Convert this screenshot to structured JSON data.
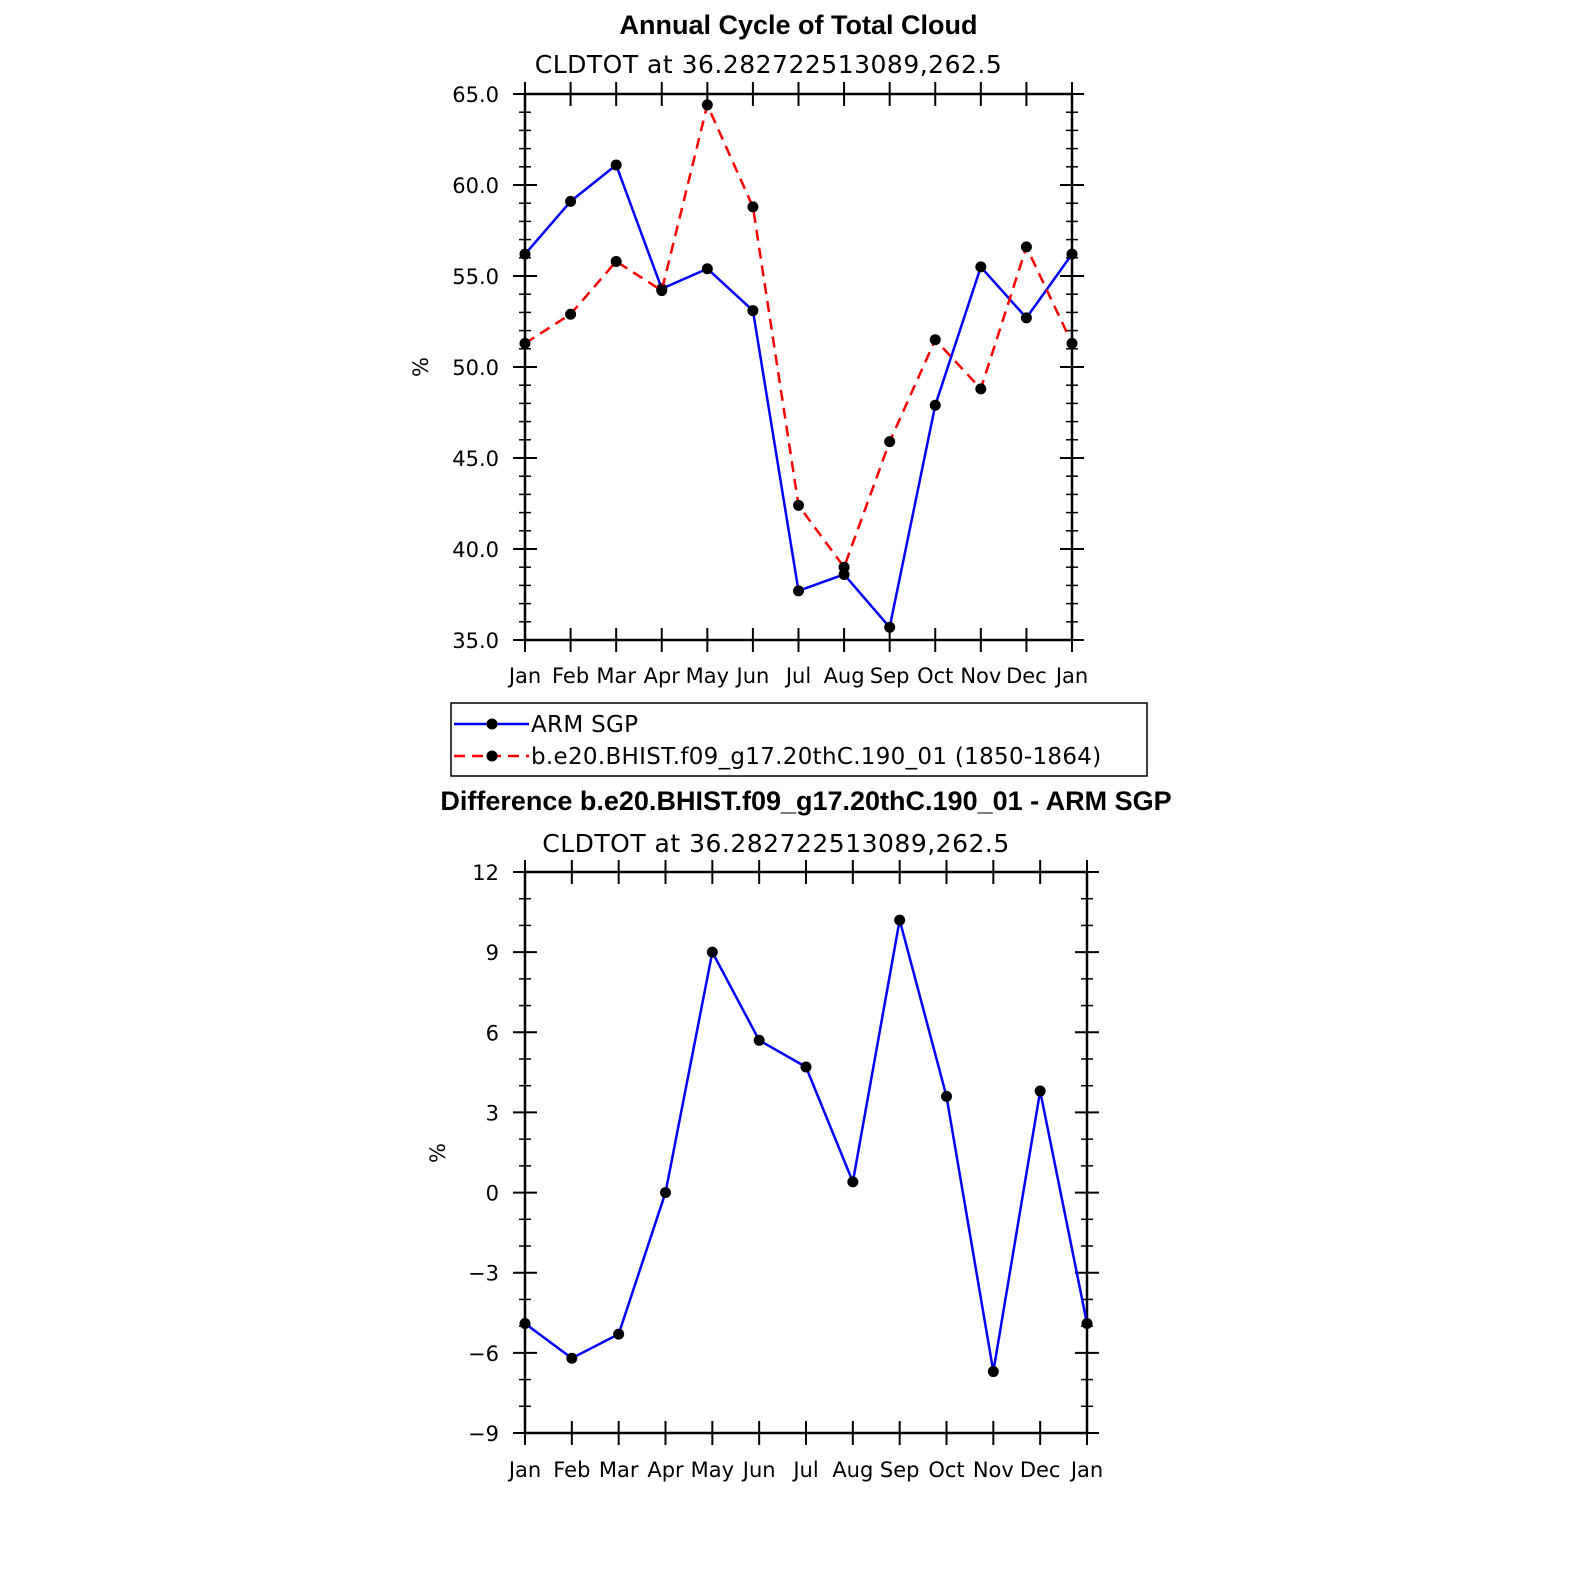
{
  "chart_data": [
    {
      "type": "line",
      "title": "Annual Cycle of Total Cloud",
      "subtitle": "CLDTOT at 36.282722513089,262.5",
      "ylabel": "%",
      "xlabel": "",
      "categories": [
        "Jan",
        "Feb",
        "Mar",
        "Apr",
        "May",
        "Jun",
        "Jul",
        "Aug",
        "Sep",
        "Oct",
        "Nov",
        "Dec",
        "Jan"
      ],
      "ylim": [
        35.0,
        65.0
      ],
      "yticks": [
        "35.0",
        "40.0",
        "45.0",
        "50.0",
        "55.0",
        "60.0",
        "65.0"
      ],
      "grid": false,
      "legend_position": "bottom",
      "series": [
        {
          "name": "ARM SGP",
          "color": "#0000ff",
          "dash": "solid",
          "marker": "dot",
          "values": [
            56.2,
            59.1,
            61.1,
            54.3,
            55.4,
            53.1,
            37.7,
            38.6,
            35.7,
            47.9,
            55.5,
            52.7,
            56.2
          ]
        },
        {
          "name": "b.e20.BHIST.f09_g17.20thC.190_01 (1850-1864)",
          "color": "#ff0000",
          "dash": "dashed",
          "marker": "dot",
          "values": [
            51.3,
            52.9,
            55.8,
            54.2,
            64.4,
            58.8,
            42.4,
            39.0,
            45.9,
            51.5,
            48.8,
            56.6,
            51.3
          ]
        }
      ]
    },
    {
      "type": "line",
      "title": "Difference b.e20.BHIST.f09_g17.20thC.190_01 - ARM SGP",
      "subtitle": "CLDTOT at 36.282722513089,262.5",
      "ylabel": "%",
      "xlabel": "",
      "categories": [
        "Jan",
        "Feb",
        "Mar",
        "Apr",
        "May",
        "Jun",
        "Jul",
        "Aug",
        "Sep",
        "Oct",
        "Nov",
        "Dec",
        "Jan"
      ],
      "ylim": [
        -9,
        12
      ],
      "yticks": [
        "−9",
        "−6",
        "−3",
        "0",
        "3",
        "6",
        "9",
        "12"
      ],
      "grid": false,
      "series": [
        {
          "color": "#0000ff",
          "dash": "solid",
          "marker": "dot",
          "values": [
            -4.9,
            -6.2,
            -5.3,
            0.0,
            9.0,
            5.7,
            4.7,
            0.4,
            10.2,
            3.6,
            -6.7,
            3.8,
            -4.9
          ]
        }
      ]
    }
  ]
}
